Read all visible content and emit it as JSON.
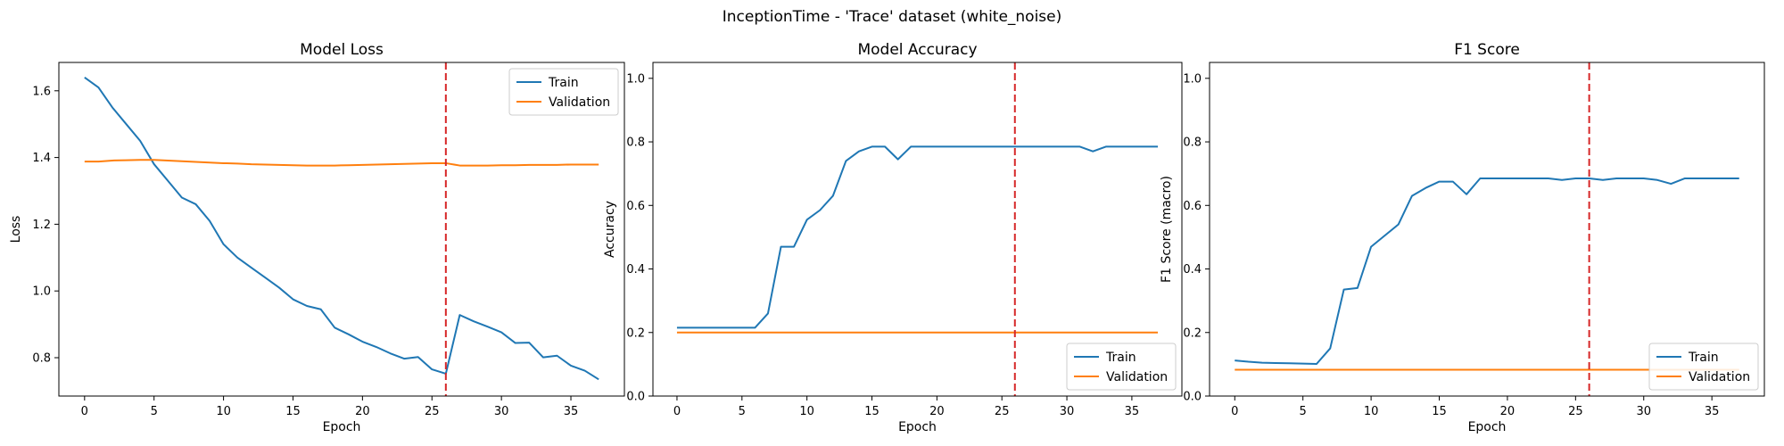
{
  "suptitle": "InceptionTime - 'Trace' dataset (white_noise)",
  "colors": {
    "train": "#1f77b4",
    "validation": "#ff7f0e",
    "marker": "#d62728"
  },
  "chart_data": [
    {
      "type": "line",
      "title": "Model Loss",
      "xlabel": "Epoch",
      "ylabel": "Loss",
      "xlim": [
        -1.85,
        38.85
      ],
      "ylim": [
        0.685,
        1.685
      ],
      "xticks": [
        0,
        5,
        10,
        15,
        20,
        25,
        30,
        35
      ],
      "yticks": [
        0.8,
        1.0,
        1.2,
        1.4,
        1.6
      ],
      "ytick_labels": [
        "0.8",
        "1.0",
        "1.2",
        "1.4",
        "1.6"
      ],
      "vline_x": 26,
      "legend": "top-right",
      "series": [
        {
          "name": "Train",
          "color_key": "train",
          "x": [
            0,
            1,
            2,
            3,
            4,
            5,
            6,
            7,
            8,
            9,
            10,
            11,
            12,
            13,
            14,
            15,
            16,
            17,
            18,
            19,
            20,
            21,
            22,
            23,
            24,
            25,
            26,
            27,
            28,
            29,
            30,
            31,
            32,
            33,
            34,
            35,
            36,
            37
          ],
          "y": [
            1.64,
            1.61,
            1.55,
            1.5,
            1.45,
            1.38,
            1.33,
            1.28,
            1.26,
            1.21,
            1.14,
            1.1,
            1.07,
            1.04,
            1.01,
            0.975,
            0.955,
            0.945,
            0.89,
            0.87,
            0.848,
            0.832,
            0.813,
            0.797,
            0.802,
            0.765,
            0.752,
            0.928,
            0.909,
            0.893,
            0.876,
            0.844,
            0.845,
            0.801,
            0.806,
            0.776,
            0.761,
            0.735
          ]
        },
        {
          "name": "Validation",
          "color_key": "validation",
          "x": [
            0,
            1,
            2,
            3,
            4,
            5,
            6,
            7,
            8,
            9,
            10,
            11,
            12,
            13,
            14,
            15,
            16,
            17,
            18,
            19,
            20,
            21,
            22,
            23,
            24,
            25,
            26,
            27,
            28,
            29,
            30,
            31,
            32,
            33,
            34,
            35,
            36,
            37
          ],
          "y": [
            1.388,
            1.388,
            1.391,
            1.392,
            1.393,
            1.393,
            1.391,
            1.389,
            1.387,
            1.385,
            1.383,
            1.382,
            1.38,
            1.379,
            1.378,
            1.377,
            1.376,
            1.376,
            1.376,
            1.377,
            1.378,
            1.379,
            1.38,
            1.381,
            1.382,
            1.383,
            1.383,
            1.376,
            1.376,
            1.376,
            1.377,
            1.377,
            1.378,
            1.378,
            1.378,
            1.379,
            1.379,
            1.379
          ]
        }
      ]
    },
    {
      "type": "line",
      "title": "Model Accuracy",
      "xlabel": "Epoch",
      "ylabel": "Accuracy",
      "xlim": [
        -1.85,
        38.85
      ],
      "ylim": [
        0.0,
        1.05
      ],
      "xticks": [
        0,
        5,
        10,
        15,
        20,
        25,
        30,
        35
      ],
      "yticks": [
        0.0,
        0.2,
        0.4,
        0.6,
        0.8,
        1.0
      ],
      "ytick_labels": [
        "0.0",
        "0.2",
        "0.4",
        "0.6",
        "0.8",
        "1.0"
      ],
      "vline_x": 26,
      "legend": "bottom-right",
      "series": [
        {
          "name": "Train",
          "color_key": "train",
          "x": [
            0,
            1,
            2,
            3,
            4,
            5,
            6,
            7,
            8,
            9,
            10,
            11,
            12,
            13,
            14,
            15,
            16,
            17,
            18,
            19,
            20,
            21,
            22,
            23,
            24,
            25,
            26,
            27,
            28,
            29,
            30,
            31,
            32,
            33,
            34,
            35,
            36,
            37
          ],
          "y": [
            0.215,
            0.215,
            0.215,
            0.215,
            0.215,
            0.215,
            0.215,
            0.26,
            0.47,
            0.47,
            0.555,
            0.585,
            0.63,
            0.74,
            0.77,
            0.785,
            0.785,
            0.745,
            0.785,
            0.785,
            0.785,
            0.785,
            0.785,
            0.785,
            0.785,
            0.785,
            0.785,
            0.785,
            0.785,
            0.785,
            0.785,
            0.785,
            0.77,
            0.785,
            0.785,
            0.785,
            0.785,
            0.785
          ]
        },
        {
          "name": "Validation",
          "color_key": "validation",
          "x": [
            0,
            37
          ],
          "y": [
            0.2,
            0.2
          ]
        }
      ]
    },
    {
      "type": "line",
      "title": "F1 Score",
      "xlabel": "Epoch",
      "ylabel": "F1 Score (macro)",
      "xlim": [
        -1.85,
        38.85
      ],
      "ylim": [
        0.0,
        1.05
      ],
      "xticks": [
        0,
        5,
        10,
        15,
        20,
        25,
        30,
        35
      ],
      "yticks": [
        0.0,
        0.2,
        0.4,
        0.6,
        0.8,
        1.0
      ],
      "ytick_labels": [
        "0.0",
        "0.2",
        "0.4",
        "0.6",
        "0.8",
        "1.0"
      ],
      "vline_x": 26,
      "legend": "bottom-right",
      "series": [
        {
          "name": "Train",
          "color_key": "train",
          "x": [
            0,
            1,
            2,
            3,
            4,
            5,
            6,
            7,
            8,
            9,
            10,
            11,
            12,
            13,
            14,
            15,
            16,
            17,
            18,
            19,
            20,
            21,
            22,
            23,
            24,
            25,
            26,
            27,
            28,
            29,
            30,
            31,
            32,
            33,
            34,
            35,
            36,
            37
          ],
          "y": [
            0.112,
            0.108,
            0.105,
            0.104,
            0.103,
            0.102,
            0.101,
            0.15,
            0.335,
            0.34,
            0.47,
            0.505,
            0.54,
            0.63,
            0.655,
            0.675,
            0.675,
            0.635,
            0.685,
            0.685,
            0.685,
            0.685,
            0.685,
            0.685,
            0.68,
            0.685,
            0.685,
            0.68,
            0.685,
            0.685,
            0.685,
            0.68,
            0.668,
            0.685,
            0.685,
            0.685,
            0.685,
            0.685
          ]
        },
        {
          "name": "Validation",
          "color_key": "validation",
          "x": [
            0,
            37
          ],
          "y": [
            0.083,
            0.083
          ]
        }
      ]
    }
  ]
}
